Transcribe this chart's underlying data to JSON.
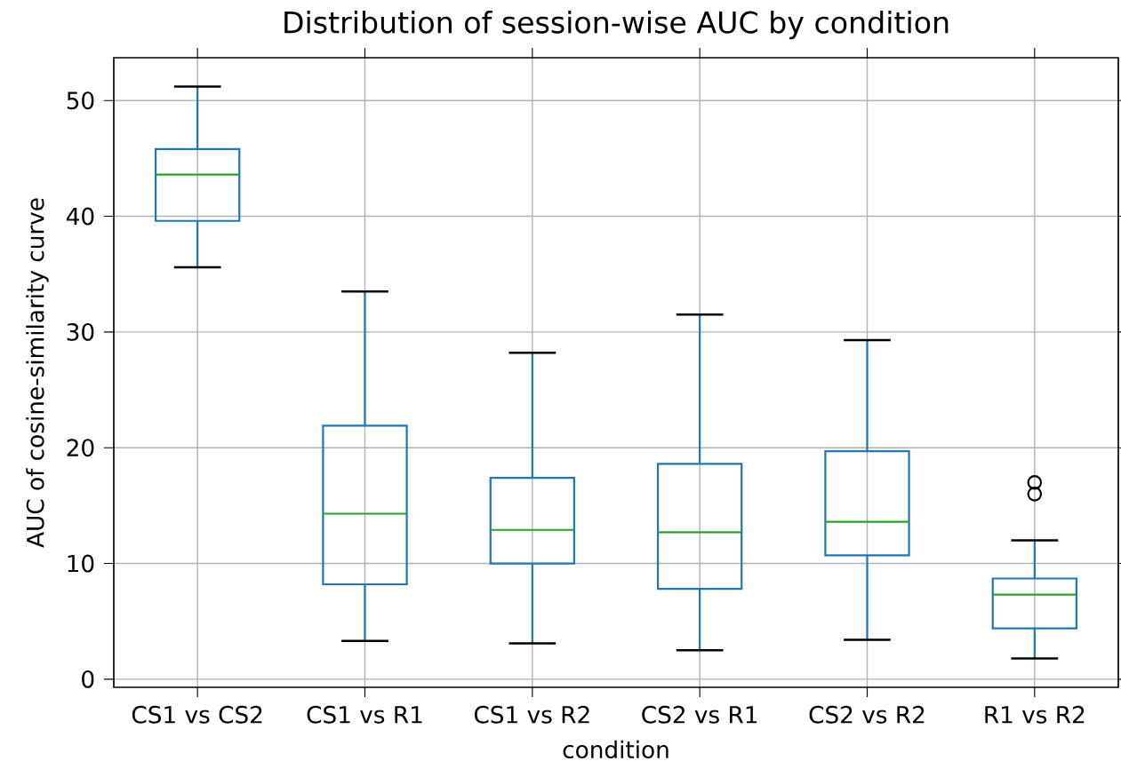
{
  "chart_data": {
    "type": "box",
    "title": "Distribution of session-wise AUC by condition",
    "xlabel": "condition",
    "ylabel": "AUC of cosine-similarity curve",
    "categories": [
      "CS1 vs CS2",
      "CS1 vs R1",
      "CS1 vs R2",
      "CS2 vs R1",
      "CS2 vs R2",
      "R1 vs R2"
    ],
    "series": [
      {
        "color": "#1f77b4",
        "boxes": [
          {
            "low": 35.6,
            "q1": 39.6,
            "median": 43.6,
            "q3": 45.8,
            "high": 51.2
          },
          {
            "low": 3.3,
            "q1": 8.2,
            "median": 14.3,
            "q3": 21.9,
            "high": 33.5
          },
          {
            "low": 3.1,
            "q1": 10.0,
            "median": 12.9,
            "q3": 17.4,
            "high": 28.2
          },
          {
            "low": 2.5,
            "q1": 7.8,
            "median": 12.7,
            "q3": 18.6,
            "high": 31.5
          },
          {
            "low": 3.4,
            "q1": 10.7,
            "median": 13.6,
            "q3": 19.7,
            "high": 29.3
          },
          {
            "low": 1.8,
            "q1": 4.4,
            "median": 7.3,
            "q3": 8.7,
            "high": 12.0,
            "outliers": [
              17.0,
              16.0
            ]
          }
        ]
      }
    ],
    "ylim": [
      -0.7,
      53.7
    ],
    "yticks": [
      0,
      10,
      20,
      30,
      40,
      50
    ],
    "grid": true
  }
}
